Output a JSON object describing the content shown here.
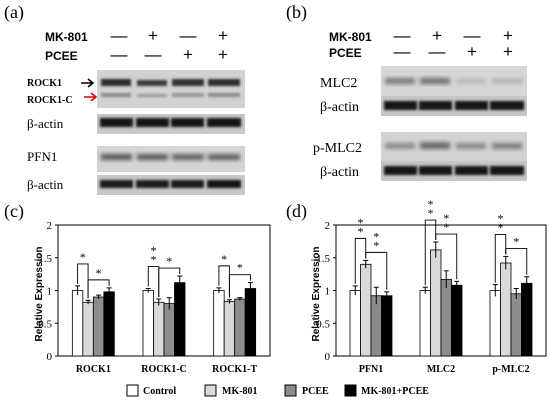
{
  "blots": {
    "a": {
      "panel_label": "(a)",
      "treatment_labels": [
        "MK-801",
        "PCEE"
      ],
      "treatment_signs": [
        [
          "—",
          "+",
          "—",
          "+"
        ],
        [
          "—",
          "—",
          "+",
          "+"
        ]
      ],
      "rows": [
        {
          "label": "ROCK1",
          "label2": "ROCK1-C",
          "kind": "rock"
        },
        {
          "label": "β-actin",
          "kind": "actin"
        },
        {
          "label": "PFN1",
          "kind": "pfn"
        },
        {
          "label": "β-actin",
          "kind": "actin"
        }
      ]
    },
    "b": {
      "panel_label": "(b)",
      "treatment_labels": [
        "MK-801",
        "PCEE"
      ],
      "treatment_signs": [
        [
          "—",
          "+",
          "—",
          "+"
        ],
        [
          "—",
          "—",
          "+",
          "+"
        ]
      ],
      "rows": [
        {
          "label": "MLC2",
          "kind": "mlc"
        },
        {
          "label": "β-actin",
          "kind": "actin"
        },
        {
          "label": "p-MLC2",
          "kind": "pmlc"
        },
        {
          "label": "β-actin",
          "kind": "actin"
        }
      ]
    }
  },
  "chart_data": [
    {
      "type": "bar",
      "panel": "(c)",
      "ylabel": "Relative Expression",
      "ylim": [
        0,
        2
      ],
      "yticks": [
        0,
        0.5,
        1,
        1.5,
        2
      ],
      "categories": [
        "ROCK1",
        "ROCK1-C",
        "ROCK1-T"
      ],
      "series": [
        {
          "name": "Control",
          "color": "#ffffff",
          "values": [
            1.0,
            1.0,
            1.0
          ],
          "errors": [
            0.07,
            0.03,
            0.04
          ]
        },
        {
          "name": "MK-801",
          "color": "#d9d9d9",
          "values": [
            0.82,
            0.82,
            0.83
          ],
          "errors": [
            0.03,
            0.05,
            0.03
          ]
        },
        {
          "name": "PCEE",
          "color": "#8c8c8c",
          "values": [
            0.9,
            0.8,
            0.87
          ],
          "errors": [
            0.03,
            0.09,
            0.02
          ]
        },
        {
          "name": "MK-801+PCEE",
          "color": "#000000",
          "values": [
            0.98,
            1.12,
            1.03
          ],
          "errors": [
            0.06,
            0.1,
            0.09
          ]
        }
      ],
      "significance": [
        {
          "cat": 0,
          "from": 0,
          "to": 1,
          "label": "*"
        },
        {
          "cat": 0,
          "from": 1,
          "to": 3,
          "label": "*"
        },
        {
          "cat": 1,
          "from": 0,
          "to": 1,
          "label": "**"
        },
        {
          "cat": 1,
          "from": 1,
          "to": 3,
          "label": "*"
        },
        {
          "cat": 2,
          "from": 0,
          "to": 1,
          "label": "*"
        },
        {
          "cat": 2,
          "from": 1,
          "to": 3,
          "label": "*"
        }
      ]
    },
    {
      "type": "bar",
      "panel": "(d)",
      "ylabel": "Relative Expression",
      "ylim": [
        0,
        2
      ],
      "yticks": [
        0,
        0.5,
        1,
        1.5,
        2
      ],
      "categories": [
        "PFN1",
        "MLC2",
        "p-MLC2"
      ],
      "series": [
        {
          "name": "Control",
          "color": "#ffffff",
          "values": [
            1.0,
            1.0,
            1.0
          ],
          "errors": [
            0.07,
            0.05,
            0.09
          ]
        },
        {
          "name": "MK-801",
          "color": "#d9d9d9",
          "values": [
            1.4,
            1.62,
            1.42
          ],
          "errors": [
            0.06,
            0.12,
            0.1
          ]
        },
        {
          "name": "PCEE",
          "color": "#8c8c8c",
          "values": [
            0.92,
            1.17,
            0.95
          ],
          "errors": [
            0.13,
            0.13,
            0.08
          ]
        },
        {
          "name": "MK-801+PCEE",
          "color": "#000000",
          "values": [
            0.92,
            1.08,
            1.11
          ],
          "errors": [
            0.06,
            0.06,
            0.1
          ]
        }
      ],
      "significance": [
        {
          "cat": 0,
          "from": 0,
          "to": 1,
          "label": "**"
        },
        {
          "cat": 0,
          "from": 1,
          "to": 3,
          "label": "**"
        },
        {
          "cat": 1,
          "from": 0,
          "to": 1,
          "label": "**"
        },
        {
          "cat": 1,
          "from": 1,
          "to": 3,
          "label": "**"
        },
        {
          "cat": 2,
          "from": 0,
          "to": 1,
          "label": "**"
        },
        {
          "cat": 2,
          "from": 1,
          "to": 3,
          "label": "*"
        }
      ]
    }
  ]
}
